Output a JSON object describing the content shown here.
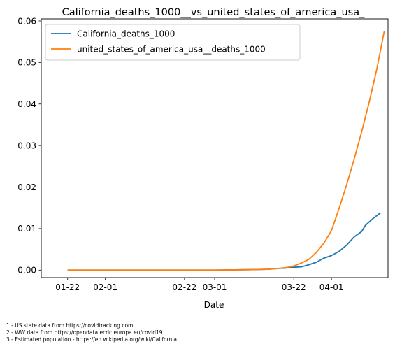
{
  "chart_data": {
    "type": "line",
    "title": "California_deaths_1000__vs_united_states_of_america_usa_",
    "xlabel": "Date",
    "ylabel": "",
    "x_ticks": [
      "01-22",
      "02-01",
      "02-22",
      "03-01",
      "03-22",
      "04-01"
    ],
    "y_ticks": [
      "0.00",
      "0.01",
      "0.02",
      "0.03",
      "0.04",
      "0.05",
      "0.06"
    ],
    "ylim": [
      -0.0018,
      0.0605
    ],
    "xlim": [
      "2020-01-15",
      "2020-04-16"
    ],
    "grid": false,
    "legend_position": "top-left",
    "series": [
      {
        "name": "California_deaths_1000",
        "color": "#1f77b4",
        "x": [
          "2020-01-22",
          "2020-03-01",
          "2020-03-10",
          "2020-03-15",
          "2020-03-18",
          "2020-03-20",
          "2020-03-22",
          "2020-03-24",
          "2020-03-26",
          "2020-03-28",
          "2020-03-30",
          "2020-04-01",
          "2020-04-03",
          "2020-04-05",
          "2020-04-07",
          "2020-04-09",
          "2020-04-10",
          "2020-04-12",
          "2020-04-14"
        ],
        "values": [
          0.0,
          0.0,
          0.0001,
          0.0002,
          0.0004,
          0.0005,
          0.0007,
          0.0008,
          0.0013,
          0.0019,
          0.0029,
          0.0035,
          0.0045,
          0.006,
          0.008,
          0.0093,
          0.0108,
          0.0124,
          0.0138
        ]
      },
      {
        "name": "united_states_of_america_usa__deaths_1000",
        "color": "#ff7f0e",
        "x": [
          "2020-01-22",
          "2020-03-01",
          "2020-03-10",
          "2020-03-15",
          "2020-03-18",
          "2020-03-20",
          "2020-03-22",
          "2020-03-24",
          "2020-03-26",
          "2020-03-28",
          "2020-03-30",
          "2020-04-01",
          "2020-04-03",
          "2020-04-05",
          "2020-04-07",
          "2020-04-09",
          "2020-04-11",
          "2020-04-13",
          "2020-04-15"
        ],
        "values": [
          0.0,
          0.0,
          0.0001,
          0.0002,
          0.0004,
          0.0006,
          0.001,
          0.0017,
          0.0026,
          0.0043,
          0.0065,
          0.0095,
          0.0148,
          0.0205,
          0.0267,
          0.0333,
          0.0404,
          0.0483,
          0.0575
        ]
      }
    ]
  },
  "footnotes": [
    "1 - US state data from https://covidtracking.com",
    "2 - WW data from https://opendata.ecdc.europa.eu/covid19",
    "3 - Estimated population - https://en.wikipedia.org/wiki/California"
  ]
}
